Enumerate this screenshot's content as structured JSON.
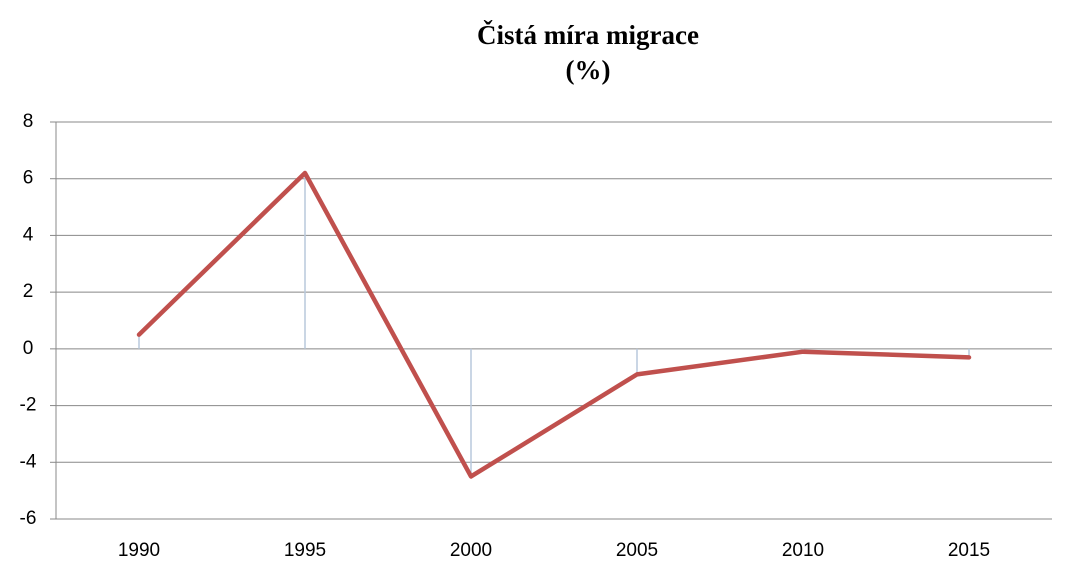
{
  "chart_data": {
    "type": "line",
    "title": "Čistá míra migrace",
    "subtitle": "(%)",
    "categories": [
      "1990",
      "1995",
      "2000",
      "2005",
      "2010",
      "2015"
    ],
    "series": [
      {
        "name": "Čistá míra migrace",
        "color": "#c0504d",
        "values": [
          0.5,
          6.2,
          -4.5,
          -0.9,
          -0.1,
          -0.3
        ]
      }
    ],
    "ylim": [
      -6,
      8
    ],
    "yticks": [
      -6,
      -4,
      -2,
      0,
      2,
      4,
      6,
      8
    ],
    "grid": true,
    "drop_lines": true,
    "drop_line_color": "#b9c9dc"
  }
}
